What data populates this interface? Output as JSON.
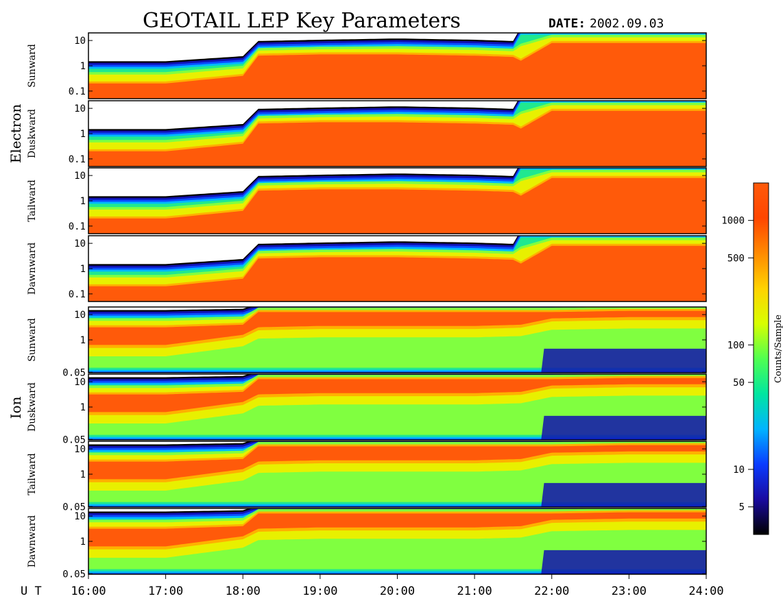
{
  "header": {
    "title": "GEOTAIL LEP Key Parameters",
    "date_label": "DATE:",
    "date_value": "2002.09.03"
  },
  "chart_data": {
    "type": "heatmap",
    "time_axis": {
      "prefix": "U T",
      "ticks": [
        "16:00",
        "17:00",
        "18:00",
        "19:00",
        "20:00",
        "21:00",
        "22:00",
        "23:00",
        "24:00"
      ],
      "range_hours": [
        16,
        24
      ]
    },
    "groups": [
      {
        "label": "Electron",
        "panels": [
          {
            "label": "Sunward",
            "yticks": [
              "10",
              "1",
              "0.1"
            ]
          },
          {
            "label": "Duskward",
            "yticks": [
              "10",
              "1",
              "0.1"
            ]
          },
          {
            "label": "Tailward",
            "yticks": [
              "10",
              "1",
              "0.1"
            ]
          },
          {
            "label": "Dawnward",
            "yticks": [
              "10",
              "1",
              "0.1"
            ]
          }
        ],
        "ylim": [
          0.05,
          20
        ],
        "yscale": "log"
      },
      {
        "label": "Ion",
        "panels": [
          {
            "label": "Sunward",
            "yticks": [
              "10",
              "1",
              "0.05"
            ]
          },
          {
            "label": "Duskward",
            "yticks": [
              "10",
              "1",
              "0.05"
            ]
          },
          {
            "label": "Tailward",
            "yticks": [
              "10",
              "1",
              "0.05"
            ]
          },
          {
            "label": "Dawnward",
            "yticks": [
              "10",
              "1",
              "0.05"
            ]
          }
        ],
        "ylim": [
          0.05,
          20
        ],
        "yscale": "log"
      }
    ],
    "colorbar": {
      "label": "Counts/Sample",
      "scale": "log",
      "range": [
        3,
        2000
      ],
      "ticks": [
        {
          "value": 1000,
          "label": "1000"
        },
        {
          "value": 500,
          "label": "500"
        },
        {
          "value": 100,
          "label": "100"
        },
        {
          "value": 50,
          "label": "50"
        },
        {
          "value": 10,
          "label": "10"
        },
        {
          "value": 5,
          "label": "5"
        }
      ],
      "colors": [
        "#000000",
        "#1a0aa0",
        "#0a3cff",
        "#00b4ff",
        "#00e6a0",
        "#50ff50",
        "#d8ff00",
        "#ffd200",
        "#ff8a00",
        "#ff4600",
        "#ff5a0a"
      ]
    },
    "electron_band": {
      "note_hours": [
        16,
        17,
        18,
        18.2,
        19,
        20,
        21,
        21.5,
        21.6,
        22,
        23,
        24
      ],
      "upper_edge_log": [
        0.1,
        0.1,
        0.3,
        0.9,
        0.95,
        1.0,
        0.95,
        0.9,
        1.45,
        1.45,
        1.45,
        1.45
      ],
      "core_top_log": [
        -0.7,
        -0.7,
        -0.4,
        0.4,
        0.45,
        0.45,
        0.4,
        0.35,
        0.2,
        0.9,
        0.9,
        0.9
      ]
    },
    "ion_band": {
      "note_hours": [
        16,
        17,
        18,
        18.2,
        19,
        20,
        21,
        21.6,
        22,
        23,
        24
      ],
      "upper_edge_log": [
        1.1,
        1.1,
        1.15,
        1.35,
        1.35,
        1.35,
        1.35,
        1.35,
        1.35,
        1.35,
        1.35
      ],
      "core_top_log": [
        0.5,
        0.5,
        0.6,
        1.1,
        1.1,
        1.1,
        1.1,
        1.1,
        1.1,
        1.15,
        1.15
      ],
      "core_bot_log": [
        -0.2,
        -0.2,
        0.2,
        0.5,
        0.55,
        0.55,
        0.55,
        0.6,
        0.85,
        0.9,
        0.9
      ]
    }
  }
}
